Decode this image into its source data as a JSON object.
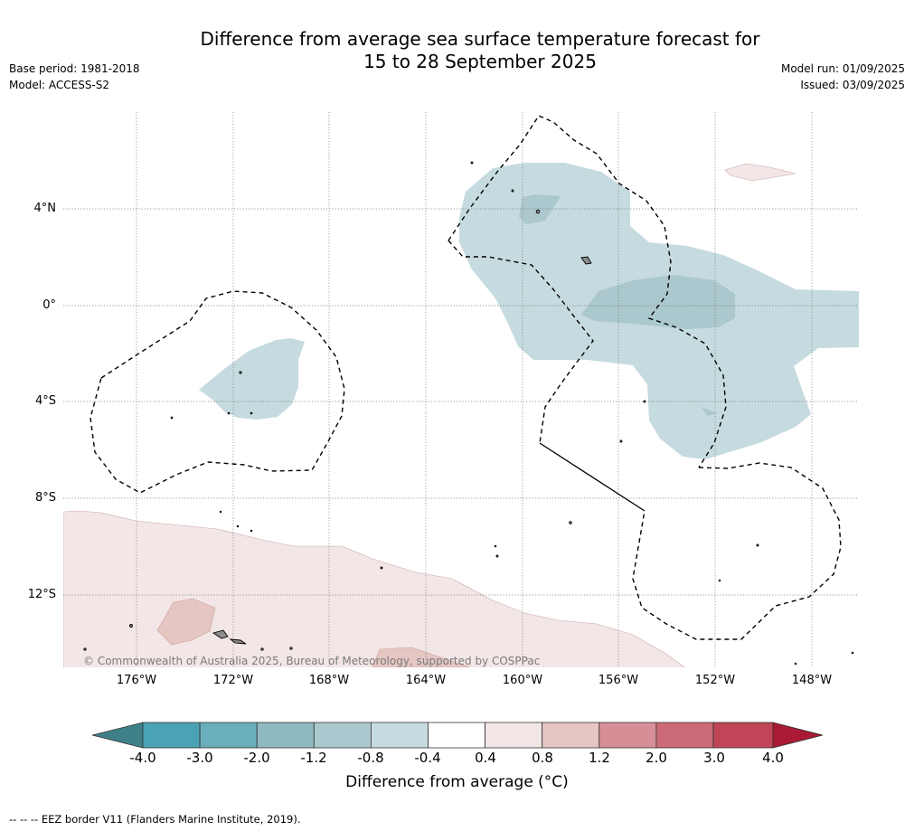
{
  "header": {
    "title_line1": "Difference from average sea surface temperature forecast for",
    "title_line2": "15 to 28 September 2025",
    "base_period": "Base period: 1981-2018",
    "model": "Model: ACCESS-S2",
    "model_run": "Model run: 01/09/2025",
    "issued": "Issued: 03/09/2025"
  },
  "map": {
    "lat_labels": [
      "4°N",
      "0°",
      "4°S",
      "8°S",
      "12°S"
    ],
    "lon_labels": [
      "176°W",
      "172°W",
      "168°W",
      "164°W",
      "160°W",
      "156°W",
      "152°W",
      "148°W"
    ],
    "copyright": "© Commonwealth of Australia 2025, Bureau of Meteorology, supported by COSPPac"
  },
  "colorbar": {
    "ticks": [
      "-4.0",
      "-3.0",
      "-2.0",
      "-1.2",
      "-0.8",
      "-0.4",
      "0.4",
      "0.8",
      "1.2",
      "2.0",
      "3.0",
      "4.0"
    ],
    "colors": [
      "#3f7f88",
      "#4aa3b5",
      "#6aaebb",
      "#8fb9c0",
      "#aac8cd",
      "#c6dbdf",
      "#ffffff",
      "#f3e6e6",
      "#e6c6c2",
      "#d78f97",
      "#cc6a78",
      "#c04556",
      "#aa1a34"
    ],
    "label": "Difference from average (°C)"
  },
  "footer": {
    "legend": "--  --  -- EEZ border V11 (Flanders Marine Institute, 2019)."
  }
}
